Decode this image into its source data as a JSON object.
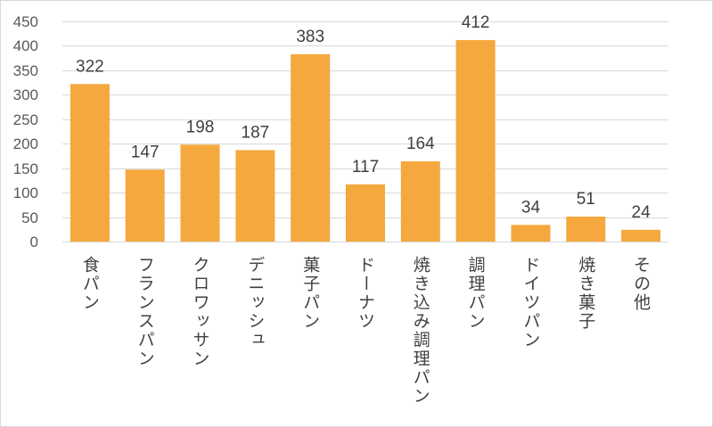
{
  "chart_data": {
    "type": "bar",
    "categories": [
      "食パン",
      "フランスパン",
      "クロワッサン",
      "デニッシュ",
      "菓子パン",
      "ドーナツ",
      "焼き込み調理パン",
      "調理パン",
      "ドイツパン",
      "焼き菓子",
      "その他"
    ],
    "values": [
      322,
      147,
      198,
      187,
      383,
      117,
      164,
      412,
      34,
      51,
      24
    ],
    "ylim": [
      0,
      450
    ],
    "yticks": [
      0,
      50,
      100,
      150,
      200,
      250,
      300,
      350,
      400,
      450
    ],
    "grid": true,
    "data_labels": true,
    "colors": {
      "bar": "#F4A83E",
      "grid": "#D9D9D9",
      "tick_text": "#595959",
      "label_text": "#404040",
      "frame": "#D9D9D9"
    }
  }
}
